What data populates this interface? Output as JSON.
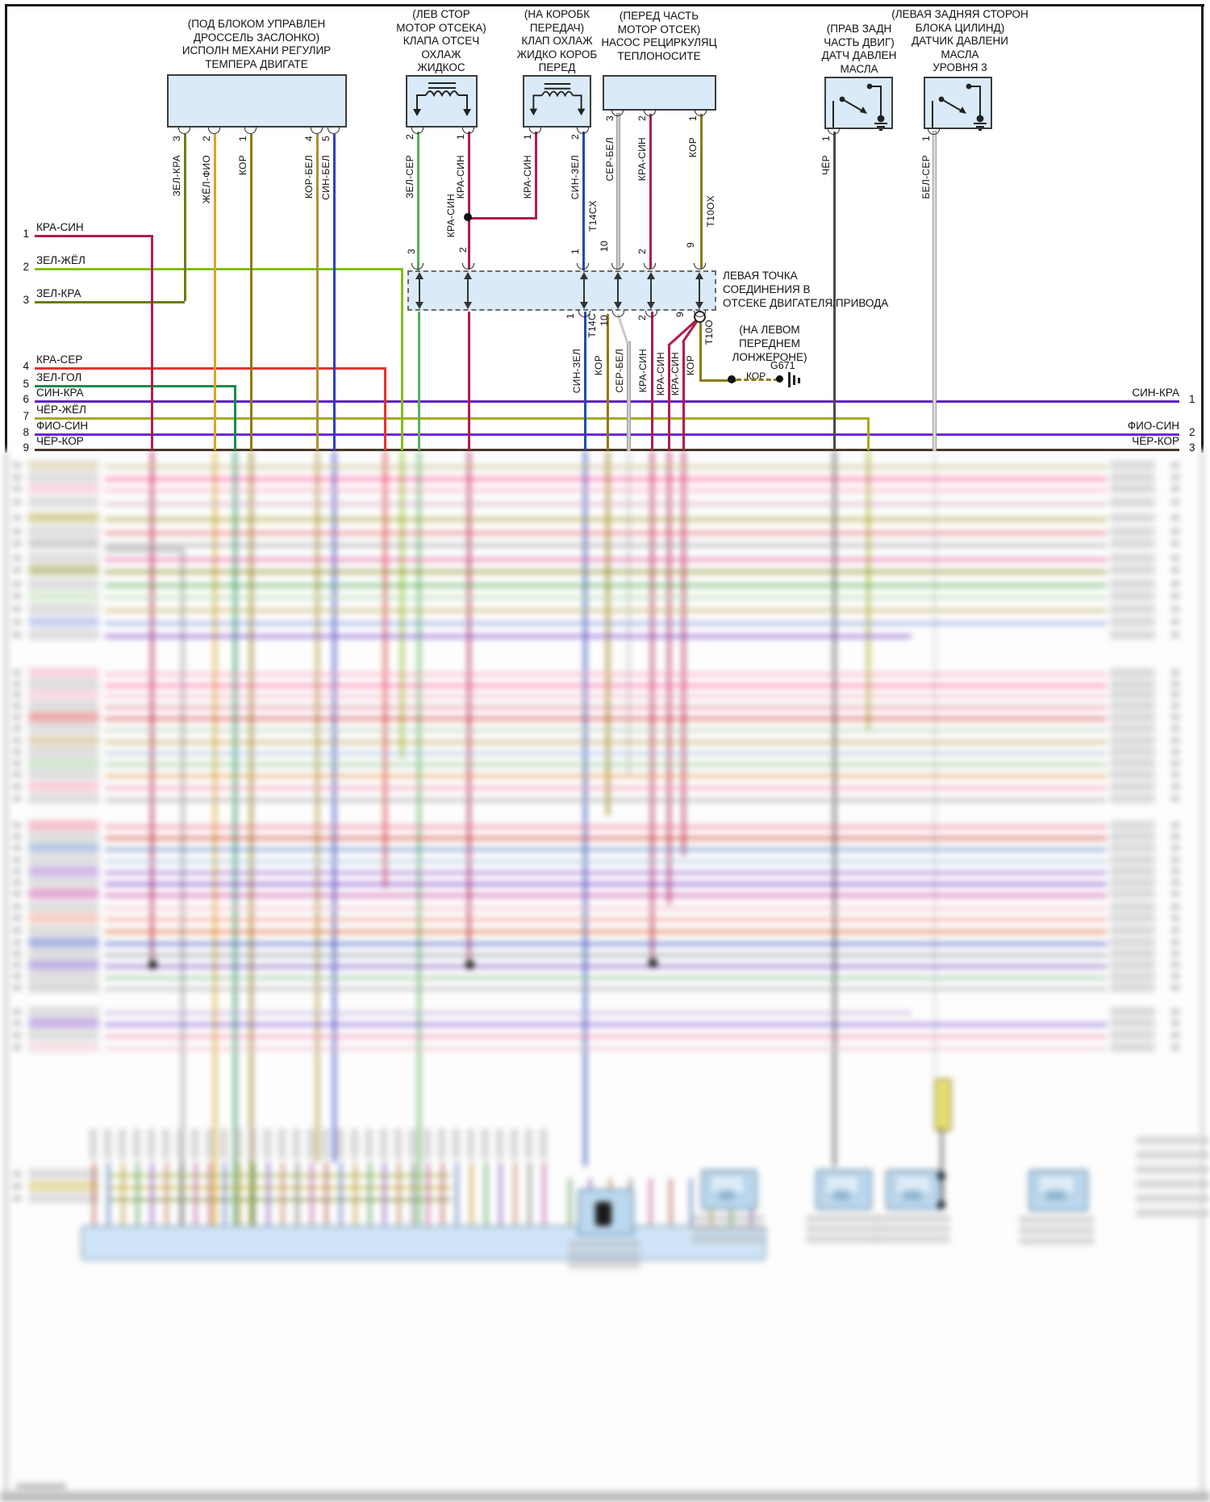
{
  "diagram_kind": "wiring diagram",
  "components": {
    "throttle_actuator": {
      "title_lines": [
        "(ПОД БЛОКОМ УПРАВЛЕН",
        "ДРОССЕЛЬ ЗАСЛОНКО)",
        "ИСПОЛН МЕХАНИ РЕГУЛИР",
        "ТЕМПЕРА ДВИГАТЕ"
      ],
      "pins": [
        {
          "number": "3",
          "wire": "ЗЕЛ-КРА"
        },
        {
          "number": "2",
          "wire": "ЖЁЛ-ФИО"
        },
        {
          "number": "1",
          "wire": "КОР"
        },
        {
          "number": "4",
          "wire": "КОР-БЕЛ"
        },
        {
          "number": "5",
          "wire": "СИН-БЕЛ"
        }
      ]
    },
    "coolant_shutoff_valve": {
      "title_lines": [
        "(ЛЕВ СТОР",
        "МОТОР ОТСЕКА)",
        "КЛАПА ОТСЕЧ",
        "ОХЛАЖ",
        "ЖИДКОС"
      ],
      "pins": [
        {
          "number": "2",
          "wire": "ЗЕЛ-СЕР"
        },
        {
          "number": "1",
          "wire": "КРА-СИН"
        }
      ]
    },
    "gearbox_coolant_valve": {
      "title_lines": [
        "(НА КОРОБК",
        "ПЕРЕДАЧ)",
        "КЛАП ОХЛАЖ",
        "ЖИДКО КОРОБ",
        "ПЕРЕД"
      ],
      "pins": [
        {
          "number": "1",
          "wire": "КРА-СИН"
        },
        {
          "number": "2",
          "wire": "СИН-ЗЕЛ"
        }
      ]
    },
    "coolant_recirculation_pump": {
      "title_lines": [
        "(ПЕРЕД ЧАСТЬ",
        "МОТОР ОТСЕК)",
        "НАСОС РЕЦИРКУЛЯЦ",
        "ТЕПЛОНОСИТЕ"
      ],
      "pins": [
        {
          "number": "3",
          "wire": "СЕР-БЕЛ"
        },
        {
          "number": "2",
          "wire": "КРА-СИН"
        },
        {
          "number": "1",
          "wire": "КОР"
        }
      ]
    },
    "oil_pressure_sensor": {
      "title_lines": [
        "(ПРАВ ЗАДН",
        "ЧАСТЬ ДВИГ)",
        "ДАТЧ ДАВЛЕН",
        "МАСЛА"
      ],
      "pins": [
        {
          "number": "1",
          "wire": "ЧЁР"
        }
      ]
    },
    "oil_pressure_level_sensor": {
      "title_lines": [
        "(ЛЕВАЯ ЗАДНЯЯ СТОРОН",
        "БЛОКА ЦИЛИНД)",
        "ДАТЧИК ДАВЛЕНИ",
        "МАСЛА",
        "УРОВНЯ 3"
      ],
      "pins": [
        {
          "number": "1",
          "wire": "БЕЛ-СЕР"
        }
      ]
    }
  },
  "junction": {
    "note_lines": [
      "ЛЕВАЯ ТОЧКА",
      "СОЕДИНЕНИЯ В",
      "ОТСЕКЕ ДВИГАТЕЛЯ/ПРИВОДА"
    ],
    "connector_top_left": "T14CX",
    "connector_top_right": "T10OX",
    "connector_bottom_left": "T14C",
    "connector_bottom_right": "T10O",
    "top_pins": [
      "3",
      "2",
      "1",
      "10",
      "2",
      "9"
    ],
    "top_wire_label": "КРА-СИН",
    "bottom_pins": [
      "1",
      "10",
      "2",
      "9"
    ],
    "bottom_wires": [
      "СИН-ЗЕЛ",
      "КОР",
      "СЕР-БЕЛ",
      "КРА-СИН",
      "КРА-СИН",
      "КРА-СИН",
      "КОР"
    ]
  },
  "ground": {
    "code": "G671",
    "wire": "КОР",
    "location_lines": [
      "(НА ЛЕВОМ",
      "ПЕРЕДНЕМ",
      "ЛОНЖЕРОНЕ)"
    ]
  },
  "left_wires": [
    {
      "num": "1",
      "label": "КРА-СИН"
    },
    {
      "num": "2",
      "label": "ЗЕЛ-ЖЁЛ"
    },
    {
      "num": "3",
      "label": "ЗЕЛ-КРА"
    },
    {
      "num": "4",
      "label": "КРА-СЕР"
    },
    {
      "num": "5",
      "label": "ЗЕЛ-ГОЛ"
    },
    {
      "num": "6",
      "label": "СИН-КРА"
    },
    {
      "num": "7",
      "label": "ЧЁР-ЖЁЛ"
    },
    {
      "num": "8",
      "label": "ФИО-СИН"
    },
    {
      "num": "9",
      "label": "ЧЁР-КОР"
    }
  ],
  "right_wires": [
    {
      "num": "1",
      "label": "СИН-КРА"
    },
    {
      "num": "2",
      "label": "ФИО-СИН"
    },
    {
      "num": "3",
      "label": "ЧЁР-КОР"
    }
  ],
  "colors": {
    "КРА-СИН": "#b01d4c",
    "ЗЕЛ-ЖЁЛ": "#7fc20d",
    "ЗЕЛ-КРА": "#6f7a15",
    "КРА-СЕР": "#e03434",
    "ЗЕЛ-ГОЛ": "#1d8a4e",
    "СИН-КРА": "#5a23c8",
    "ЧЁР-ЖЁЛ": "#a8aa1e",
    "ФИО-СИН": "#6d28d8",
    "ЧЁР-КОР": "#45392a",
    "ЖЁЛ-ФИО": "#d9a81c",
    "КОР": "#8e7912",
    "КОР-БЕЛ": "#a89334",
    "СИН-БЕЛ": "#2e3fc4",
    "ЗЕЛ-СЕР": "#53b253",
    "СИН-ЗЕЛ": "#2547b4",
    "СЕР-БЕЛ": "#c9c9c9",
    "ЧЁР": "#4a4a4a",
    "БЕЛ-СЕР": "#dcdcdc",
    "box_fill": "#daeaf8"
  }
}
